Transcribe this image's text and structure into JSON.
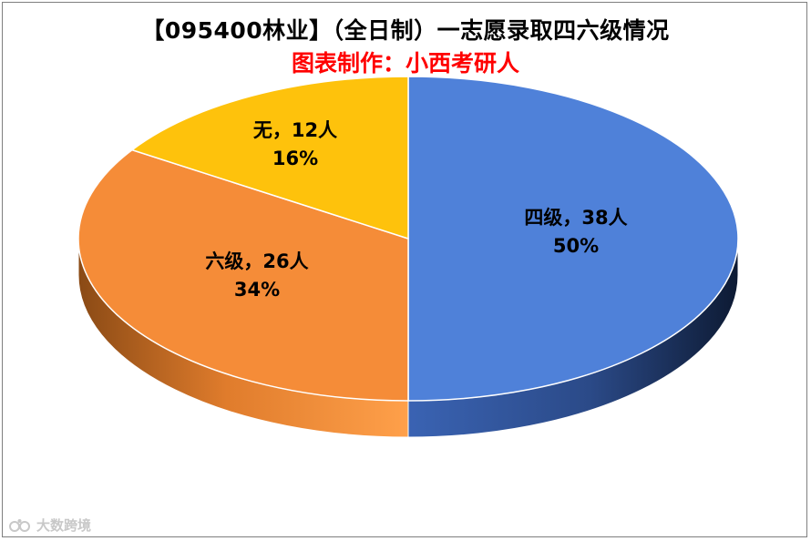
{
  "chart_data": {
    "type": "pie",
    "title": "【095400林业】（全日制）一志愿录取四六级情况",
    "subtitle": "图表制作：小西考研人",
    "slices": [
      {
        "label": "四级，38人",
        "name": "四级",
        "value": 38,
        "percent": "50%",
        "color": "#4f81d9"
      },
      {
        "label": "六级，26人",
        "name": "六级",
        "value": 26,
        "percent": "34%",
        "color": "#f58c38"
      },
      {
        "label": "无，12人",
        "name": "无",
        "value": 12,
        "percent": "16%",
        "color": "#fec20c"
      }
    ],
    "legend": "none"
  },
  "watermark": {
    "text": "大数跨境",
    "icon": "watermark-logo-icon"
  }
}
